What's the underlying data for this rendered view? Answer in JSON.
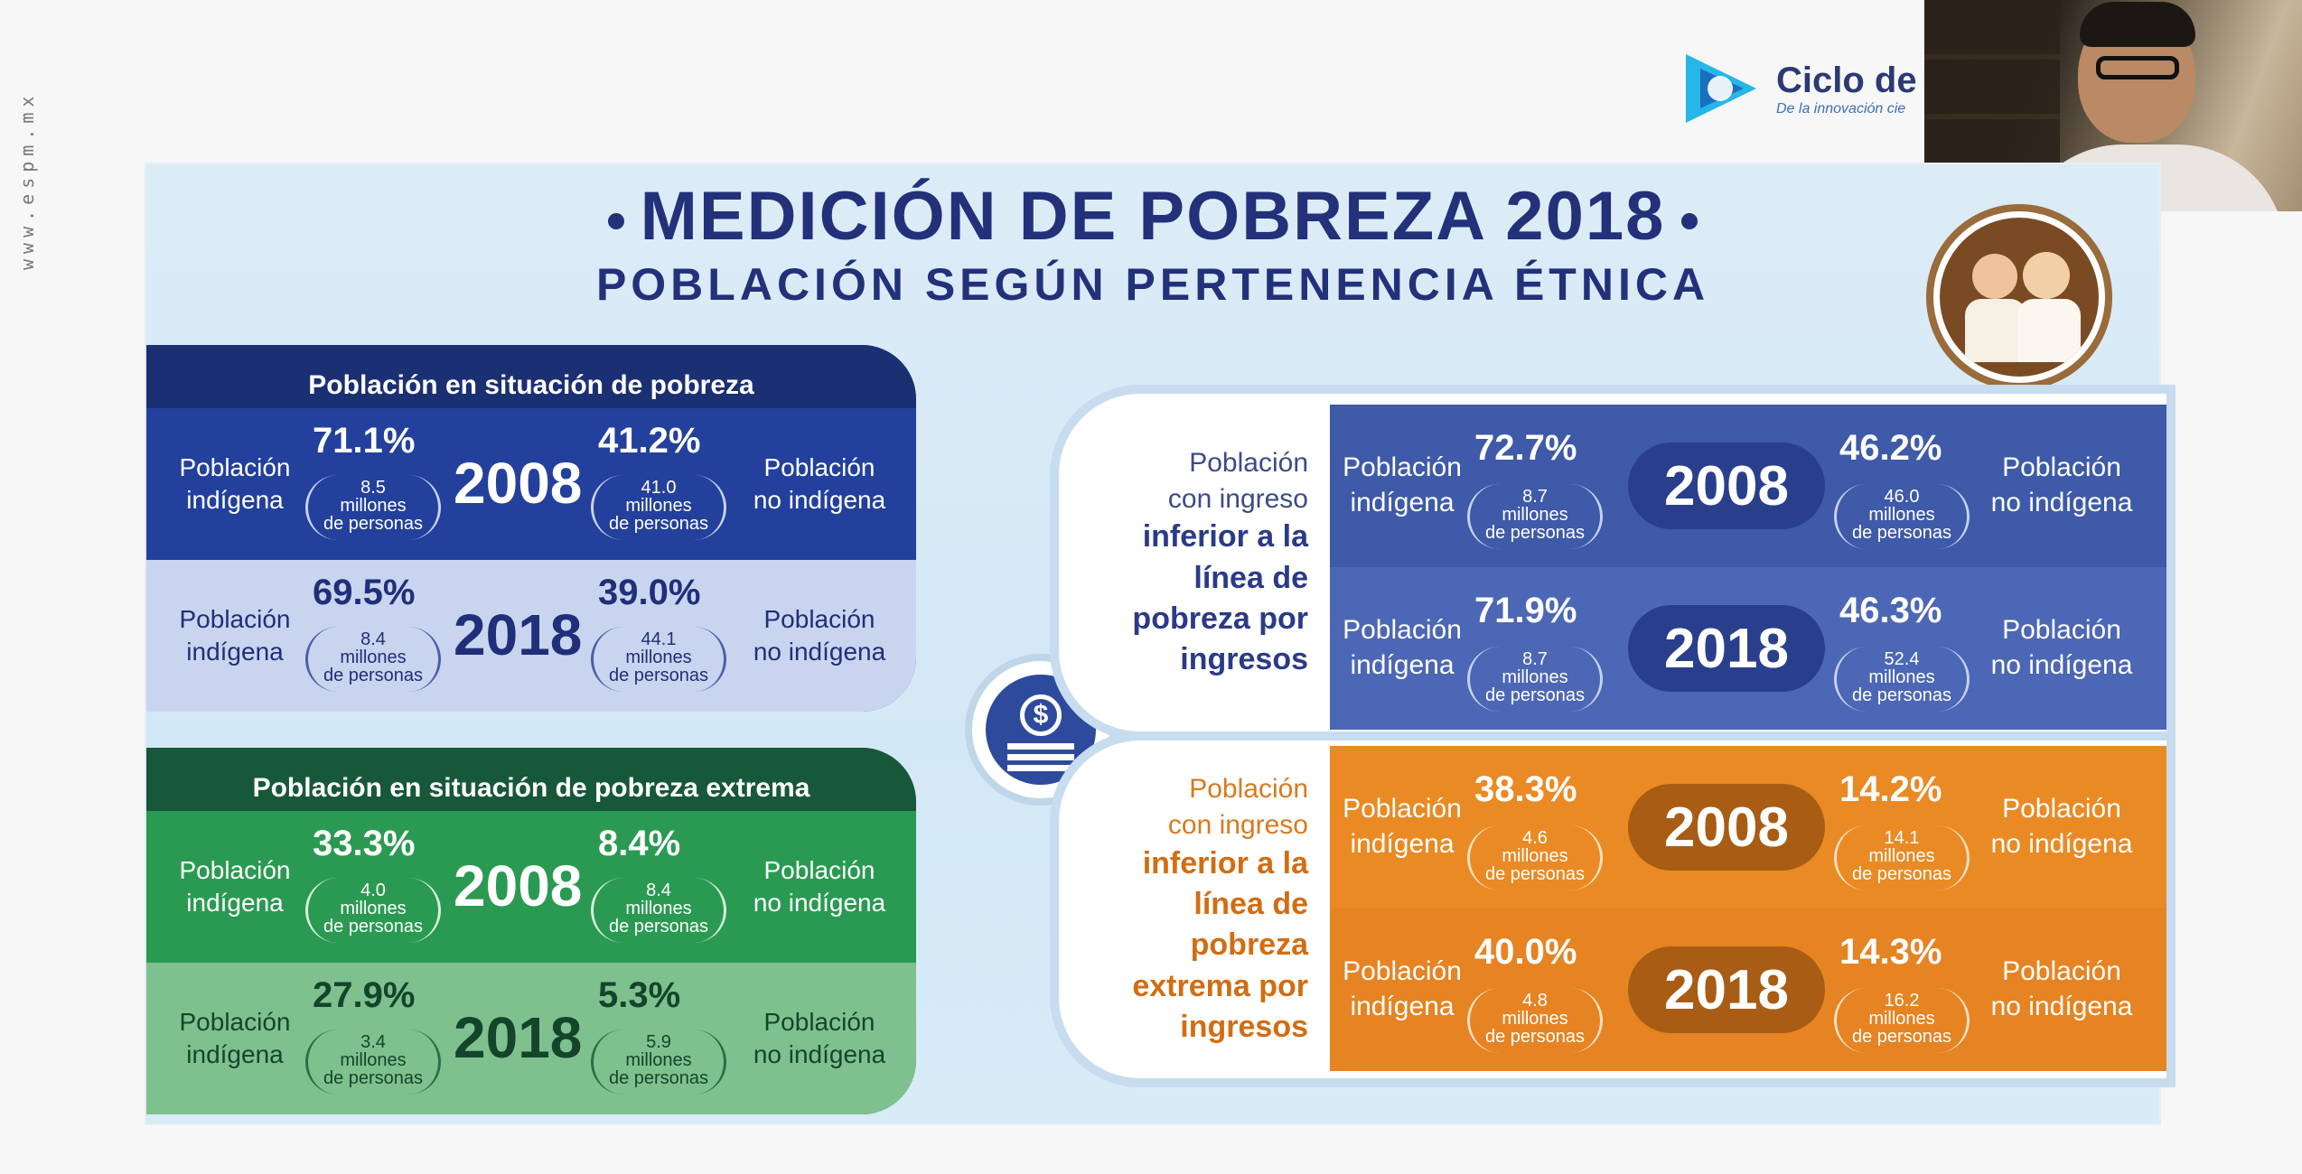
{
  "sidebar_url": "www.espm.mx",
  "brand": {
    "title": "Ciclo de Vi",
    "subtitle": "De la innovación cie"
  },
  "slide": {
    "title": "MEDICIÓN DE POBREZA 2018",
    "subtitle": "POBLACIÓN SEGÚN PERTENENCIA ÉTNICA",
    "poverty": {
      "header": "Población en situación de pobreza",
      "rows": [
        {
          "year": "2008",
          "ind_label": "Población indígena",
          "ind_pct": "71.1%",
          "ind_n": "8.5",
          "non_label": "Población no indígena",
          "non_pct": "41.2%",
          "non_n": "41.0"
        },
        {
          "year": "2018",
          "ind_label": "Población indígena",
          "ind_pct": "69.5%",
          "ind_n": "8.4",
          "non_label": "Población no indígena",
          "non_pct": "39.0%",
          "non_n": "44.1"
        }
      ]
    },
    "extreme": {
      "header": "Población en situación de pobreza extrema",
      "rows": [
        {
          "year": "2008",
          "ind_label": "Población indígena",
          "ind_pct": "33.3%",
          "ind_n": "4.0",
          "non_label": "Población no indígena",
          "non_pct": "8.4%",
          "non_n": "8.4"
        },
        {
          "year": "2018",
          "ind_label": "Población indígena",
          "ind_pct": "27.9%",
          "ind_n": "3.4",
          "non_label": "Población no indígena",
          "non_pct": "5.3%",
          "non_n": "5.9"
        }
      ]
    },
    "income": {
      "desc_1": "Población",
      "desc_2": "con ingreso",
      "desc_bold": "inferior a la línea de pobreza por ingresos",
      "rows": [
        {
          "year": "2008",
          "ind_label": "Población indígena",
          "ind_pct": "72.7%",
          "ind_n": "8.7",
          "non_label": "Población no indígena",
          "non_pct": "46.2%",
          "non_n": "46.0"
        },
        {
          "year": "2018",
          "ind_label": "Población indígena",
          "ind_pct": "71.9%",
          "ind_n": "8.7",
          "non_label": "Población no indígena",
          "non_pct": "46.3%",
          "non_n": "52.4"
        }
      ]
    },
    "extreme_income": {
      "desc_1": "Población",
      "desc_2": "con ingreso",
      "desc_bold": "inferior a la línea de pobreza extrema por ingresos",
      "rows": [
        {
          "year": "2008",
          "ind_label": "Población indígena",
          "ind_pct": "38.3%",
          "ind_n": "4.6",
          "non_label": "Población no indígena",
          "non_pct": "14.2%",
          "non_n": "14.1"
        },
        {
          "year": "2018",
          "ind_label": "Población indígena",
          "ind_pct": "40.0%",
          "ind_n": "4.8",
          "non_label": "Población no indígena",
          "non_pct": "14.3%",
          "non_n": "16.2"
        }
      ]
    },
    "persons_unit_1": "millones",
    "persons_unit_2": "de personas"
  }
}
